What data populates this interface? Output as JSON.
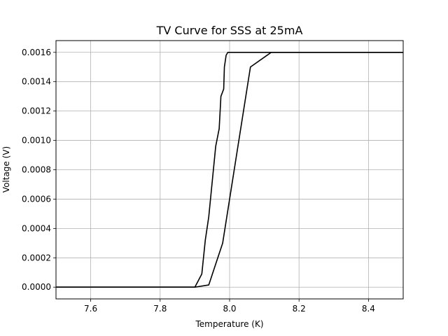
{
  "chart_data": {
    "type": "line",
    "title": "TV Curve for SSS at 25mA",
    "xlabel": "Temperature (K)",
    "ylabel": "Voltage (V)",
    "xlim": [
      7.5,
      8.5
    ],
    "ylim": [
      -8e-05,
      0.00168
    ],
    "xticks": [
      7.6,
      7.8,
      8.0,
      8.2,
      8.4
    ],
    "xtick_labels": [
      "7.6",
      "7.8",
      "8.0",
      "8.2",
      "8.4"
    ],
    "yticks": [
      0.0,
      0.0002,
      0.0004,
      0.0006,
      0.0008,
      0.001,
      0.0012,
      0.0014,
      0.0016
    ],
    "ytick_labels": [
      "0.0000",
      "0.0002",
      "0.0004",
      "0.0006",
      "0.0008",
      "0.0010",
      "0.0012",
      "0.0014",
      "0.0016"
    ],
    "grid": true,
    "line_color": "#000000",
    "series": [
      {
        "points": [
          [
            7.5,
            0.0
          ],
          [
            7.9,
            0.0
          ],
          [
            7.92,
            9e-05
          ],
          [
            7.93,
            0.00032
          ],
          [
            7.94,
            0.00048
          ],
          [
            7.95,
            0.00072
          ],
          [
            7.96,
            0.00096
          ],
          [
            7.97,
            0.00108
          ],
          [
            7.975,
            0.0013
          ],
          [
            7.983,
            0.00135
          ],
          [
            7.985,
            0.0015
          ],
          [
            7.99,
            0.00158
          ],
          [
            7.995,
            0.0016
          ],
          [
            8.01,
            0.0016
          ],
          [
            8.02,
            0.0016
          ],
          [
            8.5,
            0.0016
          ]
        ]
      },
      {
        "points": [
          [
            7.5,
            0.0
          ],
          [
            7.9,
            0.0
          ],
          [
            7.94,
            1.5e-05
          ],
          [
            7.98,
            0.0003
          ],
          [
            8.06,
            0.0015
          ],
          [
            8.12,
            0.0016
          ],
          [
            8.5,
            0.0016
          ]
        ]
      }
    ]
  }
}
